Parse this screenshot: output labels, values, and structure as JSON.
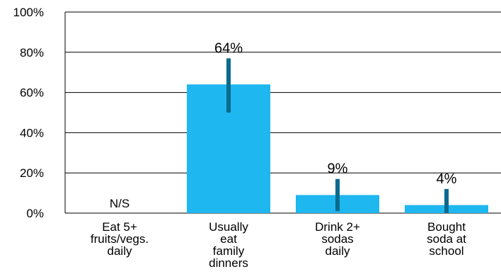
{
  "chart_data": {
    "type": "bar",
    "categories": [
      [
        "Eat 5+",
        "fruits/vegs.",
        "daily"
      ],
      [
        "Usually",
        "eat",
        "family",
        "dinners"
      ],
      [
        "Drink 2+",
        "sodas",
        "daily"
      ],
      [
        "Bought",
        "soda at",
        "school"
      ]
    ],
    "values": [
      null,
      64,
      9,
      4
    ],
    "error_bars": [
      null,
      [
        50,
        77
      ],
      [
        1,
        17
      ],
      [
        0,
        12
      ]
    ],
    "data_labels": [
      "N/S",
      "64%",
      "9%",
      "4%"
    ],
    "yticks": [
      "0%",
      "20%",
      "40%",
      "60%",
      "80%",
      "100%"
    ],
    "ylim": [
      0,
      100
    ],
    "grid": true,
    "colors": {
      "bar": "#1fb7ef",
      "error": "#0a6b8e",
      "grid": "#000000"
    }
  }
}
